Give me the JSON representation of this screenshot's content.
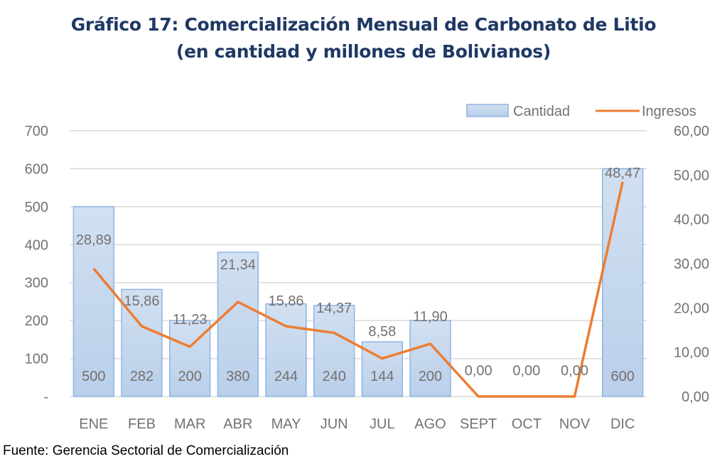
{
  "chart_data": {
    "type": "bar+line",
    "title": "Gráfico 17: Comercialización Mensual de Carbonato de Litio",
    "subtitle": "(en cantidad y millones de Bolivianos)",
    "categories": [
      "ENE",
      "FEB",
      "MAR",
      "ABR",
      "MAY",
      "JUN",
      "JUL",
      "AGO",
      "SEPT",
      "OCT",
      "NOV",
      "DIC"
    ],
    "series": [
      {
        "name": "Cantidad",
        "type": "bar",
        "axis": "left",
        "color": "#c5d7ee",
        "border": "#8eb4e3",
        "values": [
          500,
          282,
          200,
          380,
          244,
          240,
          144,
          200,
          0,
          0,
          0,
          600
        ],
        "labels": [
          "500",
          "282",
          "200",
          "380",
          "244",
          "240",
          "144",
          "200",
          "",
          "",
          "",
          "600"
        ]
      },
      {
        "name": "Ingresos",
        "type": "line",
        "axis": "right",
        "color": "#ed7d31",
        "values": [
          28.89,
          15.86,
          11.23,
          21.34,
          15.86,
          14.37,
          8.58,
          11.9,
          0,
          0,
          0,
          48.47
        ],
        "labels": [
          "28,89",
          "15,86",
          "11,23",
          "21,34",
          "15,86",
          "14,37",
          "8,58",
          "11,90",
          "0,00",
          "0,00",
          "0,00",
          "48,47"
        ]
      }
    ],
    "y_left": {
      "range": [
        0,
        700
      ],
      "ticks": [
        0,
        100,
        200,
        300,
        400,
        500,
        600,
        700
      ],
      "tick_labels": [
        "-",
        "100",
        "200",
        "300",
        "400",
        "500",
        "600",
        "700"
      ]
    },
    "y_right": {
      "range": [
        0,
        60
      ],
      "ticks": [
        0,
        10,
        20,
        30,
        40,
        50,
        60
      ],
      "tick_labels": [
        "0,00",
        "10,00",
        "20,00",
        "30,00",
        "40,00",
        "50,00",
        "60,00"
      ]
    },
    "grid": true,
    "legend": {
      "position": "top-right",
      "entries": [
        "Cantidad",
        "Ingresos"
      ]
    }
  },
  "footer": {
    "source_label": "Fuente:",
    "source_text": " Gerencia Sectorial de Comercialización"
  }
}
